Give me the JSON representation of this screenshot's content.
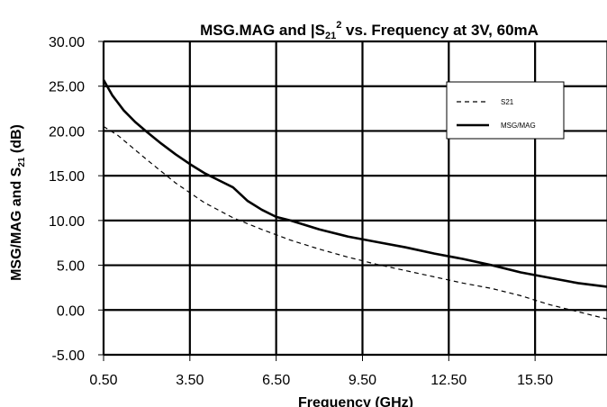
{
  "chart_data": {
    "type": "line",
    "title": {
      "prefix": "MSG.MAG and |S",
      "sub": "21",
      "sup": "2",
      "suffix": " vs. Frequency at 3V, 60mA"
    },
    "xlabel": "Frequency (GHz)",
    "ylabel": {
      "prefix": "MSG/MAG and S",
      "sub": "21",
      "suffix": " (dB)"
    },
    "xlim": [
      0.5,
      18.0
    ],
    "ylim": [
      -5,
      30
    ],
    "x_ticks": [
      0.5,
      3.5,
      6.5,
      9.5,
      12.5,
      15.5
    ],
    "x_tick_labels": [
      "0.50",
      "3.50",
      "6.50",
      "9.50",
      "12.50",
      "15.50"
    ],
    "y_ticks": [
      30,
      25,
      20,
      15,
      10,
      5,
      0,
      -5
    ],
    "y_tick_labels": [
      "30.00",
      "25.00",
      "20.00",
      "15.00",
      "10.00",
      "5.00",
      "0.00",
      "-5.00"
    ],
    "grid": true,
    "legend_position": "top-right",
    "series": [
      {
        "name": "S21",
        "style": "dashed",
        "color": "#000000",
        "x": [
          0.5,
          1.0,
          2.0,
          3.0,
          4.0,
          5.0,
          6.0,
          7.0,
          8.0,
          9.0,
          10.0,
          11.0,
          12.0,
          13.0,
          14.0,
          15.0,
          16.0,
          17.0,
          18.0
        ],
        "y": [
          20.5,
          19.5,
          16.8,
          14.2,
          12.0,
          10.3,
          9.0,
          7.8,
          6.8,
          5.9,
          5.1,
          4.4,
          3.7,
          3.0,
          2.4,
          1.6,
          0.6,
          -0.2,
          -1.0
        ]
      },
      {
        "name": "MSG/MAG",
        "style": "solid",
        "color": "#000000",
        "x": [
          0.5,
          0.8,
          1.2,
          1.6,
          2.0,
          2.5,
          3.0,
          3.5,
          4.0,
          4.5,
          5.0,
          5.5,
          6.0,
          6.5,
          7.0,
          8.0,
          9.0,
          10.0,
          11.0,
          12.0,
          13.0,
          14.0,
          15.0,
          16.0,
          17.0,
          18.0
        ],
        "y": [
          25.7,
          24.0,
          22.3,
          21.0,
          19.9,
          18.6,
          17.4,
          16.3,
          15.3,
          14.5,
          13.7,
          12.2,
          11.2,
          10.4,
          10.0,
          9.0,
          8.2,
          7.6,
          7.0,
          6.3,
          5.7,
          5.0,
          4.2,
          3.6,
          3.0,
          2.6
        ]
      }
    ]
  }
}
